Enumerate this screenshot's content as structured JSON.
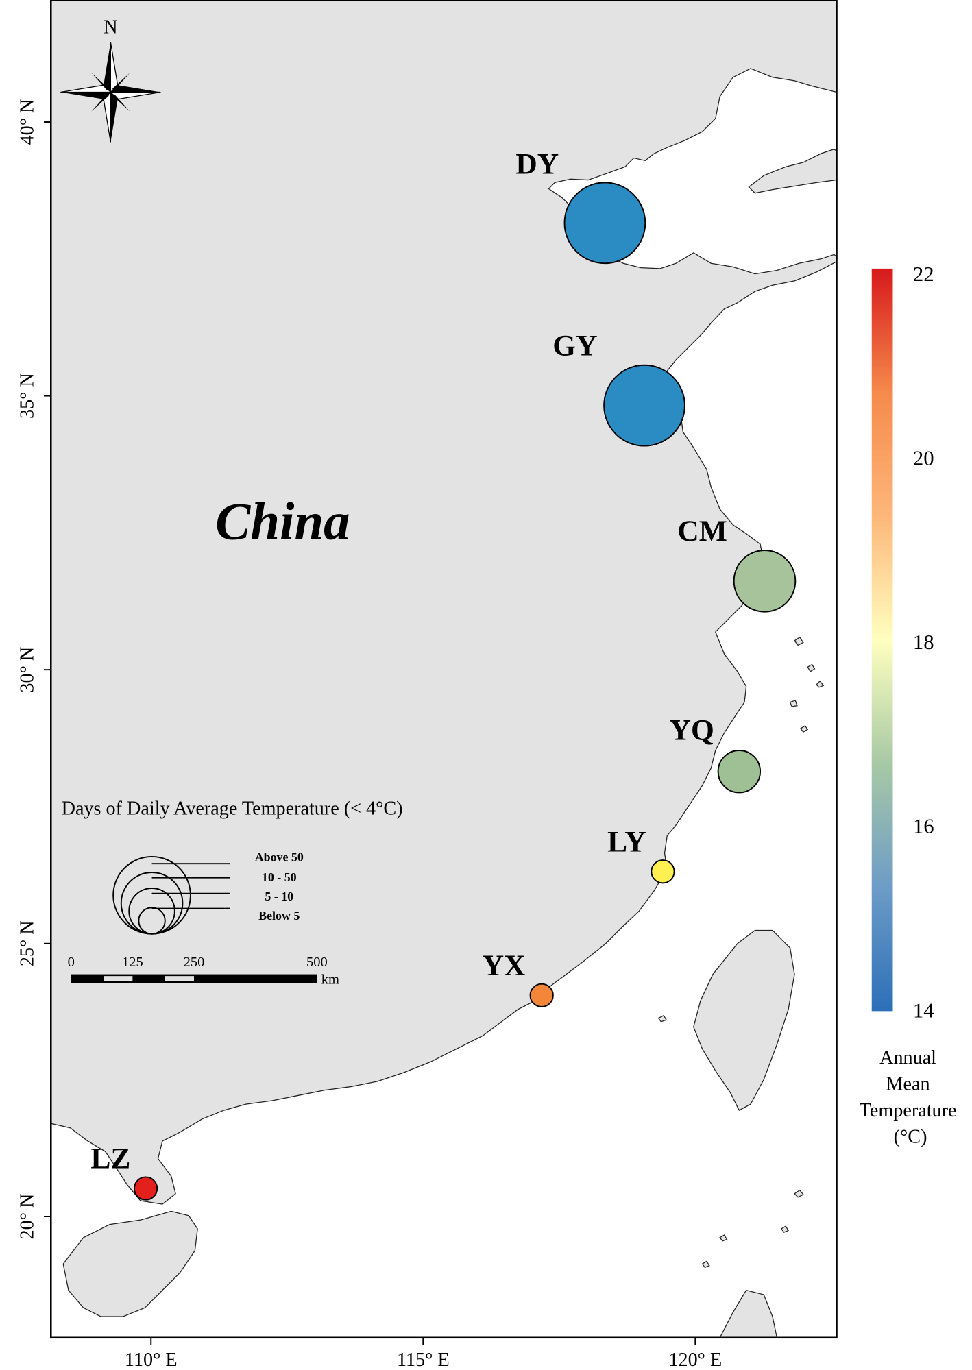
{
  "map": {
    "country_label": "China",
    "colors": {
      "land": "#e3e3e3",
      "sea": "#ffffff",
      "coast": "#222222",
      "frame": "#000000"
    },
    "axes": {
      "x_ticks": [
        "110° E",
        "115° E",
        "120° E"
      ],
      "y_ticks": [
        "20° N",
        "25° N",
        "30° N",
        "35° N",
        "40° N"
      ]
    },
    "north_arrow": {
      "label": "N",
      "icon": "compass-rose-icon"
    }
  },
  "sites": [
    {
      "code": "DY",
      "category": "Above 50",
      "annual_mean_temp_c": 14.2,
      "color": "#2b8cc4"
    },
    {
      "code": "GY",
      "category": "Above 50",
      "annual_mean_temp_c": 14.3,
      "color": "#2b8cc4"
    },
    {
      "code": "CM",
      "category": "10 - 50",
      "annual_mean_temp_c": 16.8,
      "color": "#a6c39c"
    },
    {
      "code": "YQ",
      "category": "5 - 10",
      "annual_mean_temp_c": 16.9,
      "color": "#9fbf94"
    },
    {
      "code": "LY",
      "category": "Below 5",
      "annual_mean_temp_c": 18.1,
      "color": "#fdf050"
    },
    {
      "code": "YX",
      "category": "Below 5",
      "annual_mean_temp_c": 20.6,
      "color": "#f4863a"
    },
    {
      "code": "LZ",
      "category": "Below 5",
      "annual_mean_temp_c": 22.0,
      "color": "#e4201c"
    }
  ],
  "size_legend": {
    "title": "Days of Daily Average Temperature (< 4°C)",
    "items": [
      "Above 50",
      "10 - 50",
      "5 - 10",
      "Below 5"
    ]
  },
  "scale_bar": {
    "ticks": [
      "0",
      "125",
      "250",
      "500"
    ],
    "unit": "km"
  },
  "colorbar": {
    "ticks": [
      "22",
      "20",
      "18",
      "16",
      "14"
    ],
    "min": 14,
    "max": 22,
    "title_lines": [
      "Annual",
      "Mean",
      "Temperature",
      "(°C)"
    ],
    "stops": [
      "#d7191c",
      "#f58a4b",
      "#fdb77a",
      "#ffffbf",
      "#a7c9a5",
      "#6d9cc7",
      "#2c6fb8"
    ]
  }
}
